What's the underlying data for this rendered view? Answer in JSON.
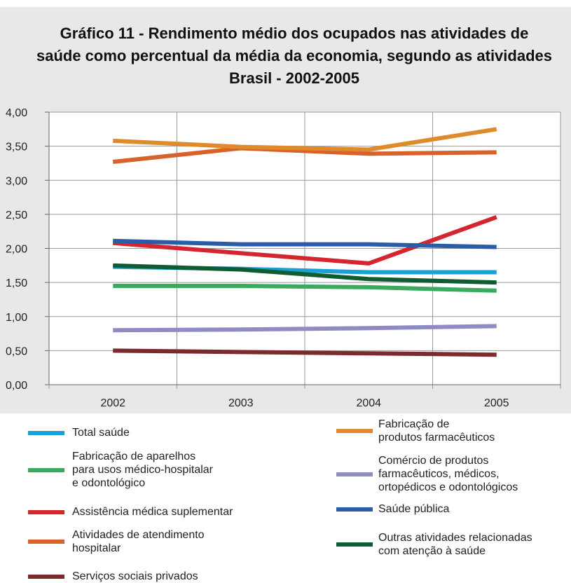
{
  "chart_data": {
    "type": "line",
    "title": "Gráfico 11 - Rendimento médio dos ocupados nas atividades de\nsaúde como percentual da média da economia, segundo as atividades\nBrasil - 2002-2005",
    "categories": [
      "2002",
      "2003",
      "2004",
      "2005"
    ],
    "ylim": [
      0,
      4
    ],
    "yticks": [
      {
        "value": 0,
        "label": "0,00"
      },
      {
        "value": 0.5,
        "label": "0,50"
      },
      {
        "value": 1,
        "label": "1,00"
      },
      {
        "value": 1.5,
        "label": "1,50"
      },
      {
        "value": 2,
        "label": "2,00"
      },
      {
        "value": 2.5,
        "label": "2,50"
      },
      {
        "value": 3,
        "label": "3,00"
      },
      {
        "value": 3.5,
        "label": "3,50"
      },
      {
        "value": 4,
        "label": "4,00"
      }
    ],
    "grid": true,
    "series": [
      {
        "name": "Total saúde",
        "color": "#1aa0d8",
        "values": [
          1.73,
          1.7,
          1.65,
          1.65
        ]
      },
      {
        "name": "Fabricação de aparelhos\npara usos médico-hospitalar\ne odontológico",
        "color": "#3aaa5c",
        "values": [
          1.45,
          1.45,
          1.43,
          1.38
        ]
      },
      {
        "name": "Assistência médica suplementar",
        "color": "#d4262e",
        "values": [
          2.08,
          1.93,
          1.78,
          2.46
        ]
      },
      {
        "name": "Atividades de atendimento\nhospitalar",
        "color": "#d9622b",
        "values": [
          3.27,
          3.47,
          3.39,
          3.41
        ]
      },
      {
        "name": "Serviços sociais privados",
        "color": "#7b2a2e",
        "values": [
          0.5,
          0.48,
          0.46,
          0.44
        ]
      },
      {
        "name": "Fabricação de\nprodutos farmacêuticos",
        "color": "#e08a2e",
        "values": [
          3.58,
          3.49,
          3.45,
          3.75
        ]
      },
      {
        "name": "Comércio de produtos\nfarmacêuticos, médicos,\nortopédicos e odontológicos",
        "color": "#8f8bc4",
        "values": [
          0.8,
          0.81,
          0.83,
          0.86
        ]
      },
      {
        "name": "Saúde pública",
        "color": "#2a5da8",
        "values": [
          2.11,
          2.06,
          2.06,
          2.02
        ]
      },
      {
        "name": "Outras atividades relacionadas\ncom atenção à saúde",
        "color": "#0f5c33",
        "values": [
          1.75,
          1.69,
          1.55,
          1.5
        ]
      }
    ]
  }
}
